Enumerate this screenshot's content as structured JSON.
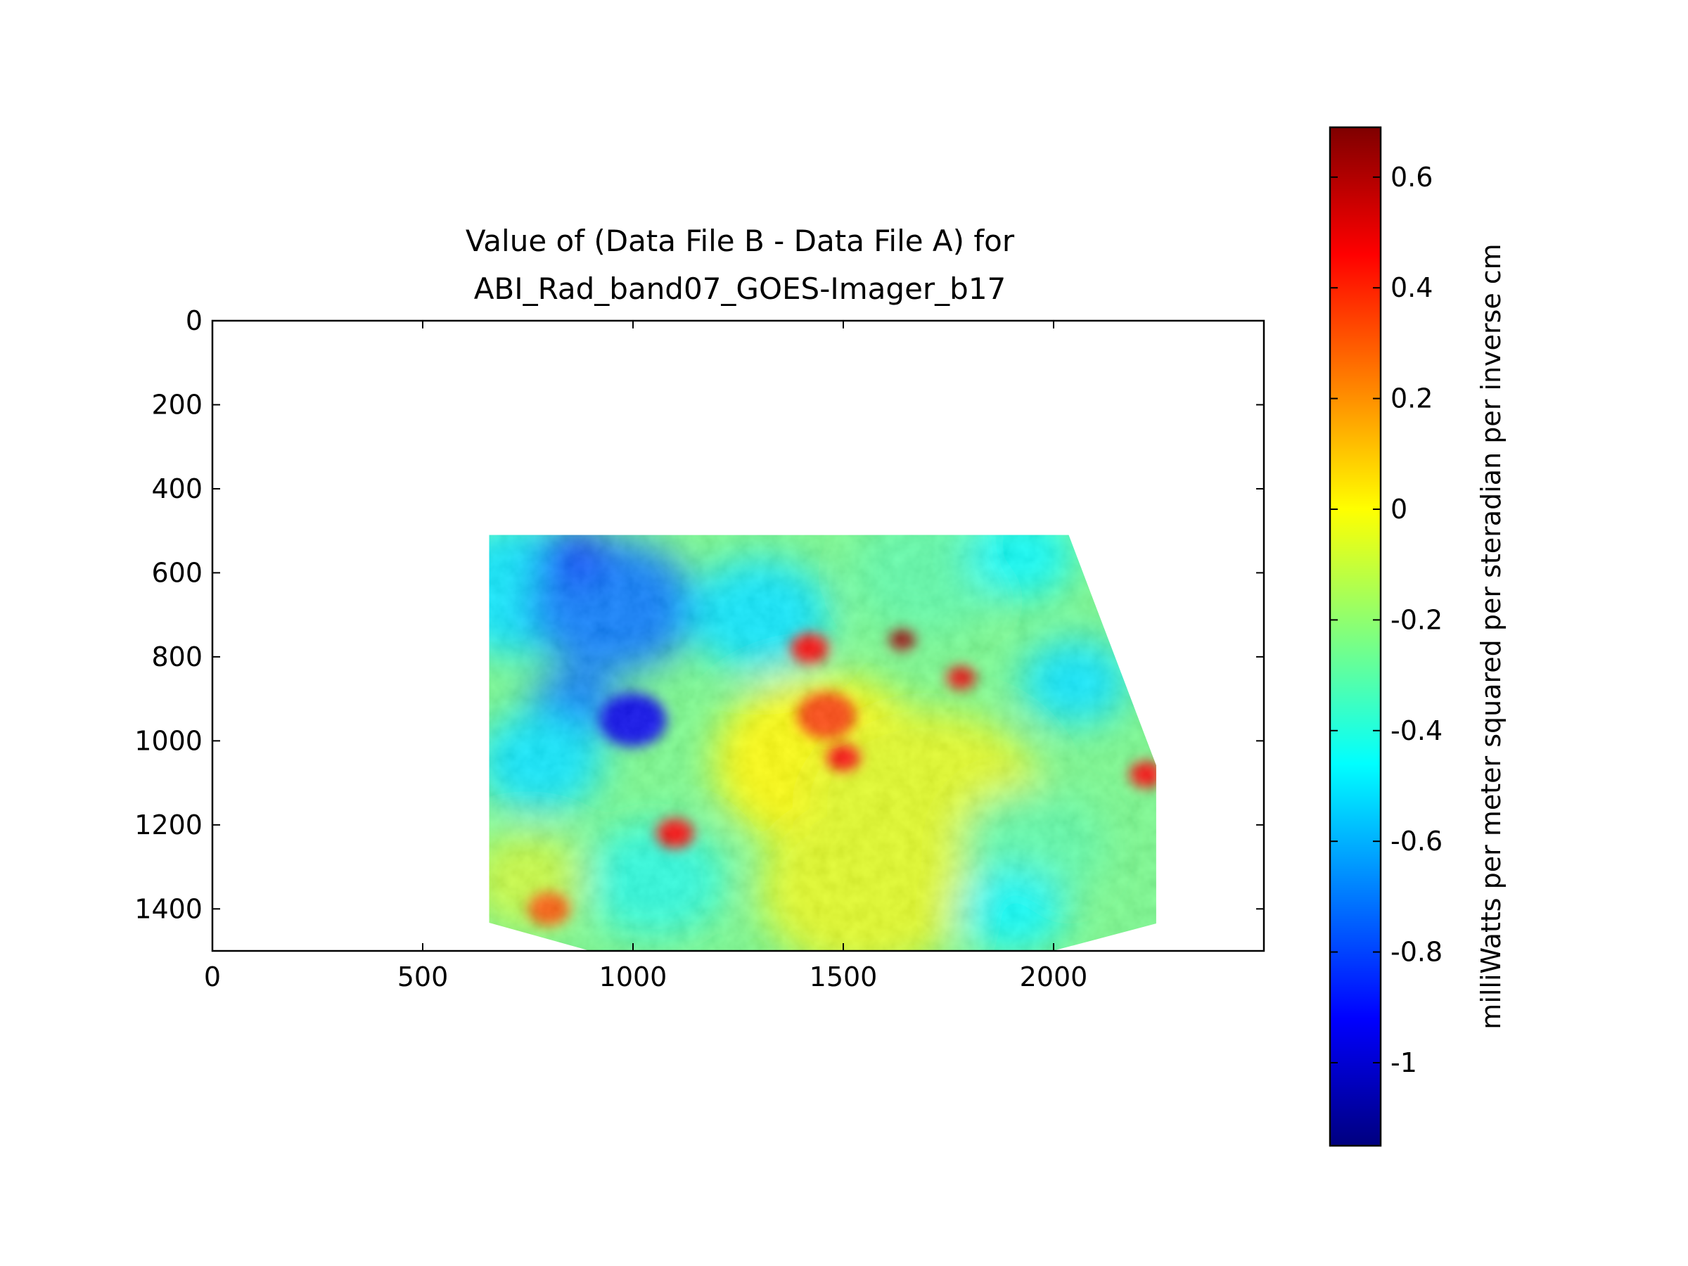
{
  "chart_data": {
    "type": "heatmap",
    "title": [
      "Value of (Data File B - Data File A) for",
      "ABI_Rad_band07_GOES-Imager_b17"
    ],
    "xlim": [
      0,
      2500
    ],
    "ylim": [
      1500,
      0
    ],
    "x_ticks": [
      0,
      500,
      1000,
      1500,
      2000
    ],
    "y_ticks": [
      0,
      200,
      400,
      600,
      800,
      1000,
      1200,
      1400
    ],
    "x_tick_labels": [
      "0",
      "500",
      "1000",
      "1500",
      "2000"
    ],
    "y_tick_labels": [
      "0",
      "200",
      "400",
      "600",
      "800",
      "1000",
      "1200",
      "1400"
    ],
    "data_extent": {
      "polygon": [
        [
          658,
          510
        ],
        [
          2036,
          510
        ],
        [
          2244,
          1058
        ],
        [
          2244,
          1435
        ],
        [
          1998,
          1500
        ],
        [
          898,
          1500
        ],
        [
          658,
          1433
        ]
      ]
    },
    "colormap": "jet",
    "colorbar": {
      "vmin": -1.15,
      "vmax": 0.69,
      "ticks": [
        0.6,
        0.4,
        0.2,
        0,
        -0.2,
        -0.4,
        -0.6,
        -0.8,
        -1
      ],
      "tick_labels": [
        "0.6",
        "0.4",
        "0.2",
        "0",
        "-0.2",
        "-0.4",
        "-0.6",
        "-0.8",
        "-1"
      ],
      "label": "milliWatts per meter squared per steradian per inverse cm",
      "colors": [
        "#00007f",
        "#0000ff",
        "#007fff",
        "#00ffff",
        "#7fff7f",
        "#ffff00",
        "#ff7f00",
        "#ff0000",
        "#7f0000"
      ]
    },
    "features": [
      {
        "x": 730,
        "y": 640,
        "v": -0.5,
        "r": 200
      },
      {
        "x": 950,
        "y": 680,
        "v": -0.7,
        "r": 200
      },
      {
        "x": 860,
        "y": 560,
        "v": -0.8,
        "r": 90
      },
      {
        "x": 1000,
        "y": 950,
        "v": -0.95,
        "r": 80
      },
      {
        "x": 860,
        "y": 920,
        "v": -0.7,
        "r": 110
      },
      {
        "x": 780,
        "y": 1050,
        "v": -0.5,
        "r": 150
      },
      {
        "x": 1300,
        "y": 700,
        "v": -0.5,
        "r": 170
      },
      {
        "x": 1700,
        "y": 600,
        "v": -0.3,
        "r": 180
      },
      {
        "x": 1920,
        "y": 560,
        "v": -0.45,
        "r": 130
      },
      {
        "x": 2050,
        "y": 860,
        "v": -0.5,
        "r": 130
      },
      {
        "x": 1450,
        "y": 1050,
        "v": 0.0,
        "r": 260
      },
      {
        "x": 1700,
        "y": 1150,
        "v": -0.05,
        "r": 280
      },
      {
        "x": 1550,
        "y": 1350,
        "v": -0.05,
        "r": 250
      },
      {
        "x": 1950,
        "y": 1250,
        "v": -0.3,
        "r": 170
      },
      {
        "x": 1900,
        "y": 1400,
        "v": -0.45,
        "r": 130
      },
      {
        "x": 1050,
        "y": 1330,
        "v": -0.4,
        "r": 170
      },
      {
        "x": 750,
        "y": 1330,
        "v": -0.1,
        "r": 140
      },
      {
        "x": 1420,
        "y": 780,
        "v": 0.45,
        "r": 45
      },
      {
        "x": 1460,
        "y": 940,
        "v": 0.35,
        "r": 70
      },
      {
        "x": 1500,
        "y": 1040,
        "v": 0.45,
        "r": 40
      },
      {
        "x": 1640,
        "y": 760,
        "v": 0.65,
        "r": 32
      },
      {
        "x": 1780,
        "y": 850,
        "v": 0.5,
        "r": 35
      },
      {
        "x": 1100,
        "y": 1220,
        "v": 0.45,
        "r": 45
      },
      {
        "x": 2220,
        "y": 1080,
        "v": 0.45,
        "r": 40
      },
      {
        "x": 800,
        "y": 1400,
        "v": 0.3,
        "r": 50
      }
    ]
  }
}
